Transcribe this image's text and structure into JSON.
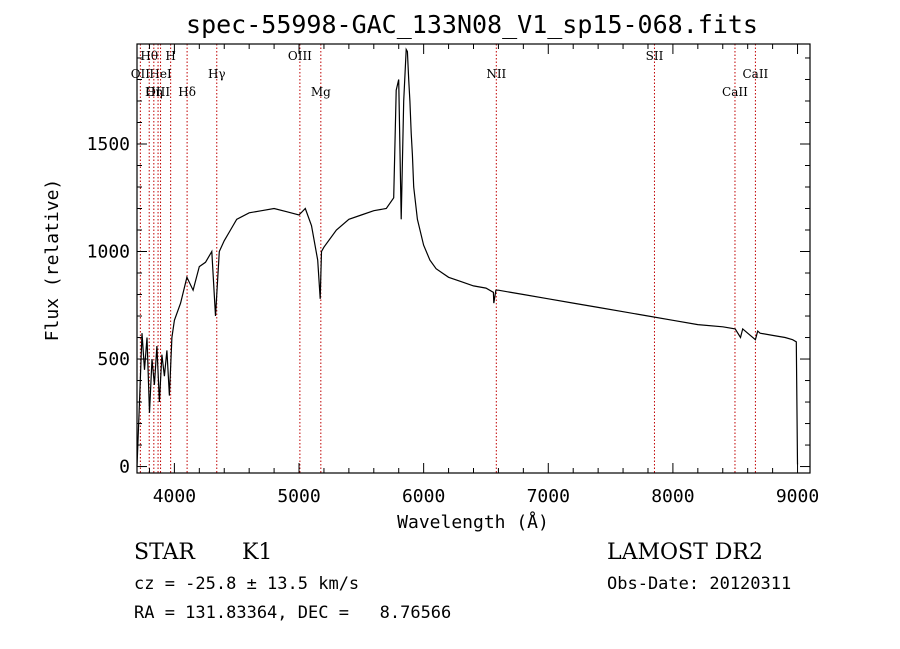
{
  "chart_data": {
    "type": "line",
    "title": "spec-55998-GAC_133N08_V1_sp15-068.fits",
    "xlabel": "Wavelength (Å)",
    "ylabel": "Flux (relative)",
    "xlim": [
      3700,
      9100
    ],
    "ylim": [
      -30,
      1965
    ],
    "xticks": [
      4000,
      5000,
      6000,
      7000,
      8000,
      9000
    ],
    "yticks": [
      0,
      500,
      1000,
      1500
    ],
    "grid": false,
    "series": [
      {
        "x": [
          3700,
          3720,
          3740,
          3760,
          3780,
          3800,
          3820,
          3840,
          3860,
          3880,
          3900,
          3920,
          3940,
          3960,
          3980,
          4000,
          4050,
          4100,
          4150,
          4200,
          4250,
          4300,
          4330,
          4360,
          4400,
          4450,
          4500,
          4600,
          4700,
          4800,
          4900,
          5000,
          5050,
          5100,
          5150,
          5170,
          5180,
          5200,
          5300,
          5400,
          5500,
          5600,
          5700,
          5760,
          5780,
          5800,
          5820,
          5840,
          5860,
          5870,
          5880,
          5890,
          5900,
          5910,
          5920,
          5950,
          6000,
          6050,
          6100,
          6150,
          6200,
          6300,
          6400,
          6500,
          6560,
          6563,
          6580,
          6600,
          6700,
          6800,
          7000,
          7200,
          7400,
          7600,
          7800,
          8000,
          8200,
          8400,
          8500,
          8542,
          8560,
          8600,
          8662,
          8680,
          8700,
          8800,
          8900,
          8960,
          8990,
          9000
        ],
        "y": [
          0,
          300,
          620,
          450,
          600,
          250,
          500,
          380,
          560,
          300,
          520,
          420,
          540,
          330,
          600,
          680,
          760,
          880,
          820,
          930,
          950,
          1000,
          700,
          1000,
          1050,
          1100,
          1150,
          1180,
          1190,
          1200,
          1185,
          1170,
          1200,
          1120,
          960,
          780,
          1000,
          1020,
          1100,
          1150,
          1170,
          1190,
          1200,
          1250,
          1750,
          1800,
          1150,
          1700,
          1940,
          1930,
          1800,
          1700,
          1550,
          1450,
          1300,
          1150,
          1030,
          960,
          920,
          900,
          880,
          860,
          840,
          830,
          810,
          760,
          820,
          820,
          810,
          800,
          780,
          760,
          740,
          720,
          700,
          680,
          660,
          650,
          640,
          600,
          640,
          620,
          590,
          630,
          620,
          610,
          600,
          590,
          580,
          10
        ]
      }
    ],
    "annotations": [
      {
        "label": "Hθ",
        "x": 3798
      },
      {
        "label": "H",
        "x": 3970
      },
      {
        "label": "OII",
        "x": 3727
      },
      {
        "label": "HeI",
        "x": 3889
      },
      {
        "label": "OIII",
        "x": 3869
      },
      {
        "label": "Hη",
        "x": 3835
      },
      {
        "label": "Hγ",
        "x": 4340
      },
      {
        "label": "Hδ",
        "x": 4102
      },
      {
        "label": "OIII",
        "x": 5007
      },
      {
        "label": "Mg",
        "x": 5175
      },
      {
        "label": "NII",
        "x": 6583
      },
      {
        "label": "SII",
        "x": 7852
      },
      {
        "label": "CaII",
        "x": 8662
      },
      {
        "label": "CaII",
        "x": 8498
      }
    ]
  },
  "info": {
    "class": "STAR",
    "subclass": "K1",
    "survey": "LAMOST DR2",
    "cz": "cz = -25.8 ± 13.5 km/s",
    "obs_date": "Obs-Date: 20120311",
    "radec": "RA = 131.83364, DEC =   8.76566"
  }
}
